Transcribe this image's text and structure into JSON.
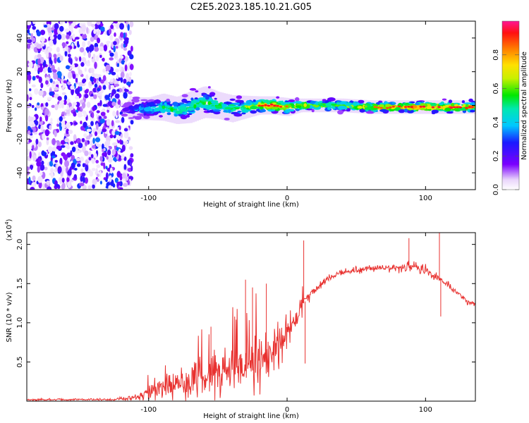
{
  "title": "C2E5.2023.185.10.21.G05",
  "chart_data": [
    {
      "type": "heatmap",
      "xlabel": "Height of straight line (km)",
      "ylabel": "Frequency (Hz)",
      "xlim": [
        -188,
        136
      ],
      "ylim": [
        -50,
        50
      ],
      "xticks": [
        -100,
        0,
        100
      ],
      "xtick_labels": [
        "-100",
        "0",
        "100"
      ],
      "yticks": [
        -40,
        -20,
        0,
        20,
        40
      ],
      "ytick_labels": [
        "-40",
        "-20",
        "0",
        "20",
        "40"
      ],
      "colorbar": {
        "label": "Normalized spectral amplitude",
        "range": [
          0,
          1
        ],
        "ticks": [
          0.0,
          0.2,
          0.4,
          0.6,
          0.8
        ],
        "tick_labels": [
          "0.0",
          "0.2",
          "0.4",
          "0.6",
          "0.8"
        ]
      },
      "noise_region_x": [
        -188,
        -112
      ],
      "ridge_x": [
        -118,
        -110,
        -100,
        -90,
        -80,
        -70,
        -60,
        -50,
        -40,
        -30,
        -20,
        -10,
        0,
        10,
        20,
        40,
        60,
        80,
        100,
        120,
        136
      ],
      "ridge_center_hz": [
        -3,
        -2,
        -2,
        -1,
        -3,
        -1,
        2,
        0,
        -2,
        -1,
        0,
        0,
        -1,
        0,
        0,
        0,
        -1,
        -1,
        -1,
        -1,
        -1
      ],
      "ridge_halfwidth_hz": [
        4,
        5,
        5,
        6,
        6,
        7,
        7,
        6,
        6,
        5,
        4,
        4,
        4,
        3,
        3,
        3,
        3,
        3,
        3,
        3,
        3
      ],
      "ridge_peak_amplitude": [
        0.25,
        0.4,
        0.5,
        0.55,
        0.6,
        0.6,
        0.62,
        0.6,
        0.62,
        0.65,
        0.85,
        0.9,
        0.8,
        0.75,
        0.7,
        0.7,
        0.8,
        0.85,
        0.9,
        0.9,
        0.85
      ]
    },
    {
      "type": "line",
      "xlabel": "Height of straight line (km)",
      "ylabel": "SNR (10 * v/v)",
      "y_scale_label": "(x10",
      "y_scale_exponent": "4",
      "y_scale_close": ")",
      "xlim": [
        -188,
        136
      ],
      "ylim": [
        0,
        2.15
      ],
      "xticks": [
        -100,
        0,
        100
      ],
      "xtick_labels": [
        "-100",
        "0",
        "100"
      ],
      "yticks": [
        0.5,
        1.0,
        1.5,
        2.0
      ],
      "ytick_labels": [
        "0.5",
        "1.0",
        "1.5",
        "2.0"
      ],
      "series": [
        {
          "name": "SNR",
          "color": "#e8312f",
          "x": [
            -188,
            -150,
            -125,
            -115,
            -105,
            -100,
            -90,
            -80,
            -70,
            -60,
            -50,
            -40,
            -30,
            -20,
            -10,
            -5,
            0,
            5,
            10,
            15,
            20,
            25,
            30,
            40,
            50,
            60,
            70,
            80,
            90,
            100,
            105,
            110,
            115,
            120,
            125,
            130,
            136
          ],
          "mean": [
            0.02,
            0.02,
            0.02,
            0.04,
            0.08,
            0.12,
            0.18,
            0.22,
            0.26,
            0.3,
            0.36,
            0.42,
            0.48,
            0.55,
            0.62,
            0.7,
            0.85,
            1.0,
            1.2,
            1.32,
            1.42,
            1.5,
            1.57,
            1.64,
            1.67,
            1.69,
            1.7,
            1.71,
            1.71,
            1.68,
            1.6,
            1.56,
            1.5,
            1.42,
            1.35,
            1.28,
            1.22
          ],
          "noise": [
            0.01,
            0.01,
            0.01,
            0.02,
            0.05,
            0.07,
            0.1,
            0.12,
            0.15,
            0.17,
            0.2,
            0.22,
            0.24,
            0.24,
            0.22,
            0.18,
            0.15,
            0.1,
            0.08,
            0.06,
            0.05,
            0.04,
            0.03,
            0.03,
            0.03,
            0.03,
            0.03,
            0.04,
            0.05,
            0.04,
            0.04,
            0.03,
            0.03,
            0.03,
            0.03,
            0.03,
            0.03
          ]
        }
      ],
      "spikes": [
        {
          "x": -55,
          "y": 0.95
        },
        {
          "x": -30,
          "y": 1.55
        },
        {
          "x": -25,
          "y": 1.45
        },
        {
          "x": -15,
          "y": 1.5
        },
        {
          "x": 12,
          "y": 2.05
        },
        {
          "x": 13,
          "y": 0.48
        },
        {
          "x": 88,
          "y": 2.08
        },
        {
          "x": 110,
          "y": 2.15
        },
        {
          "x": 111,
          "y": 1.08
        }
      ]
    }
  ]
}
